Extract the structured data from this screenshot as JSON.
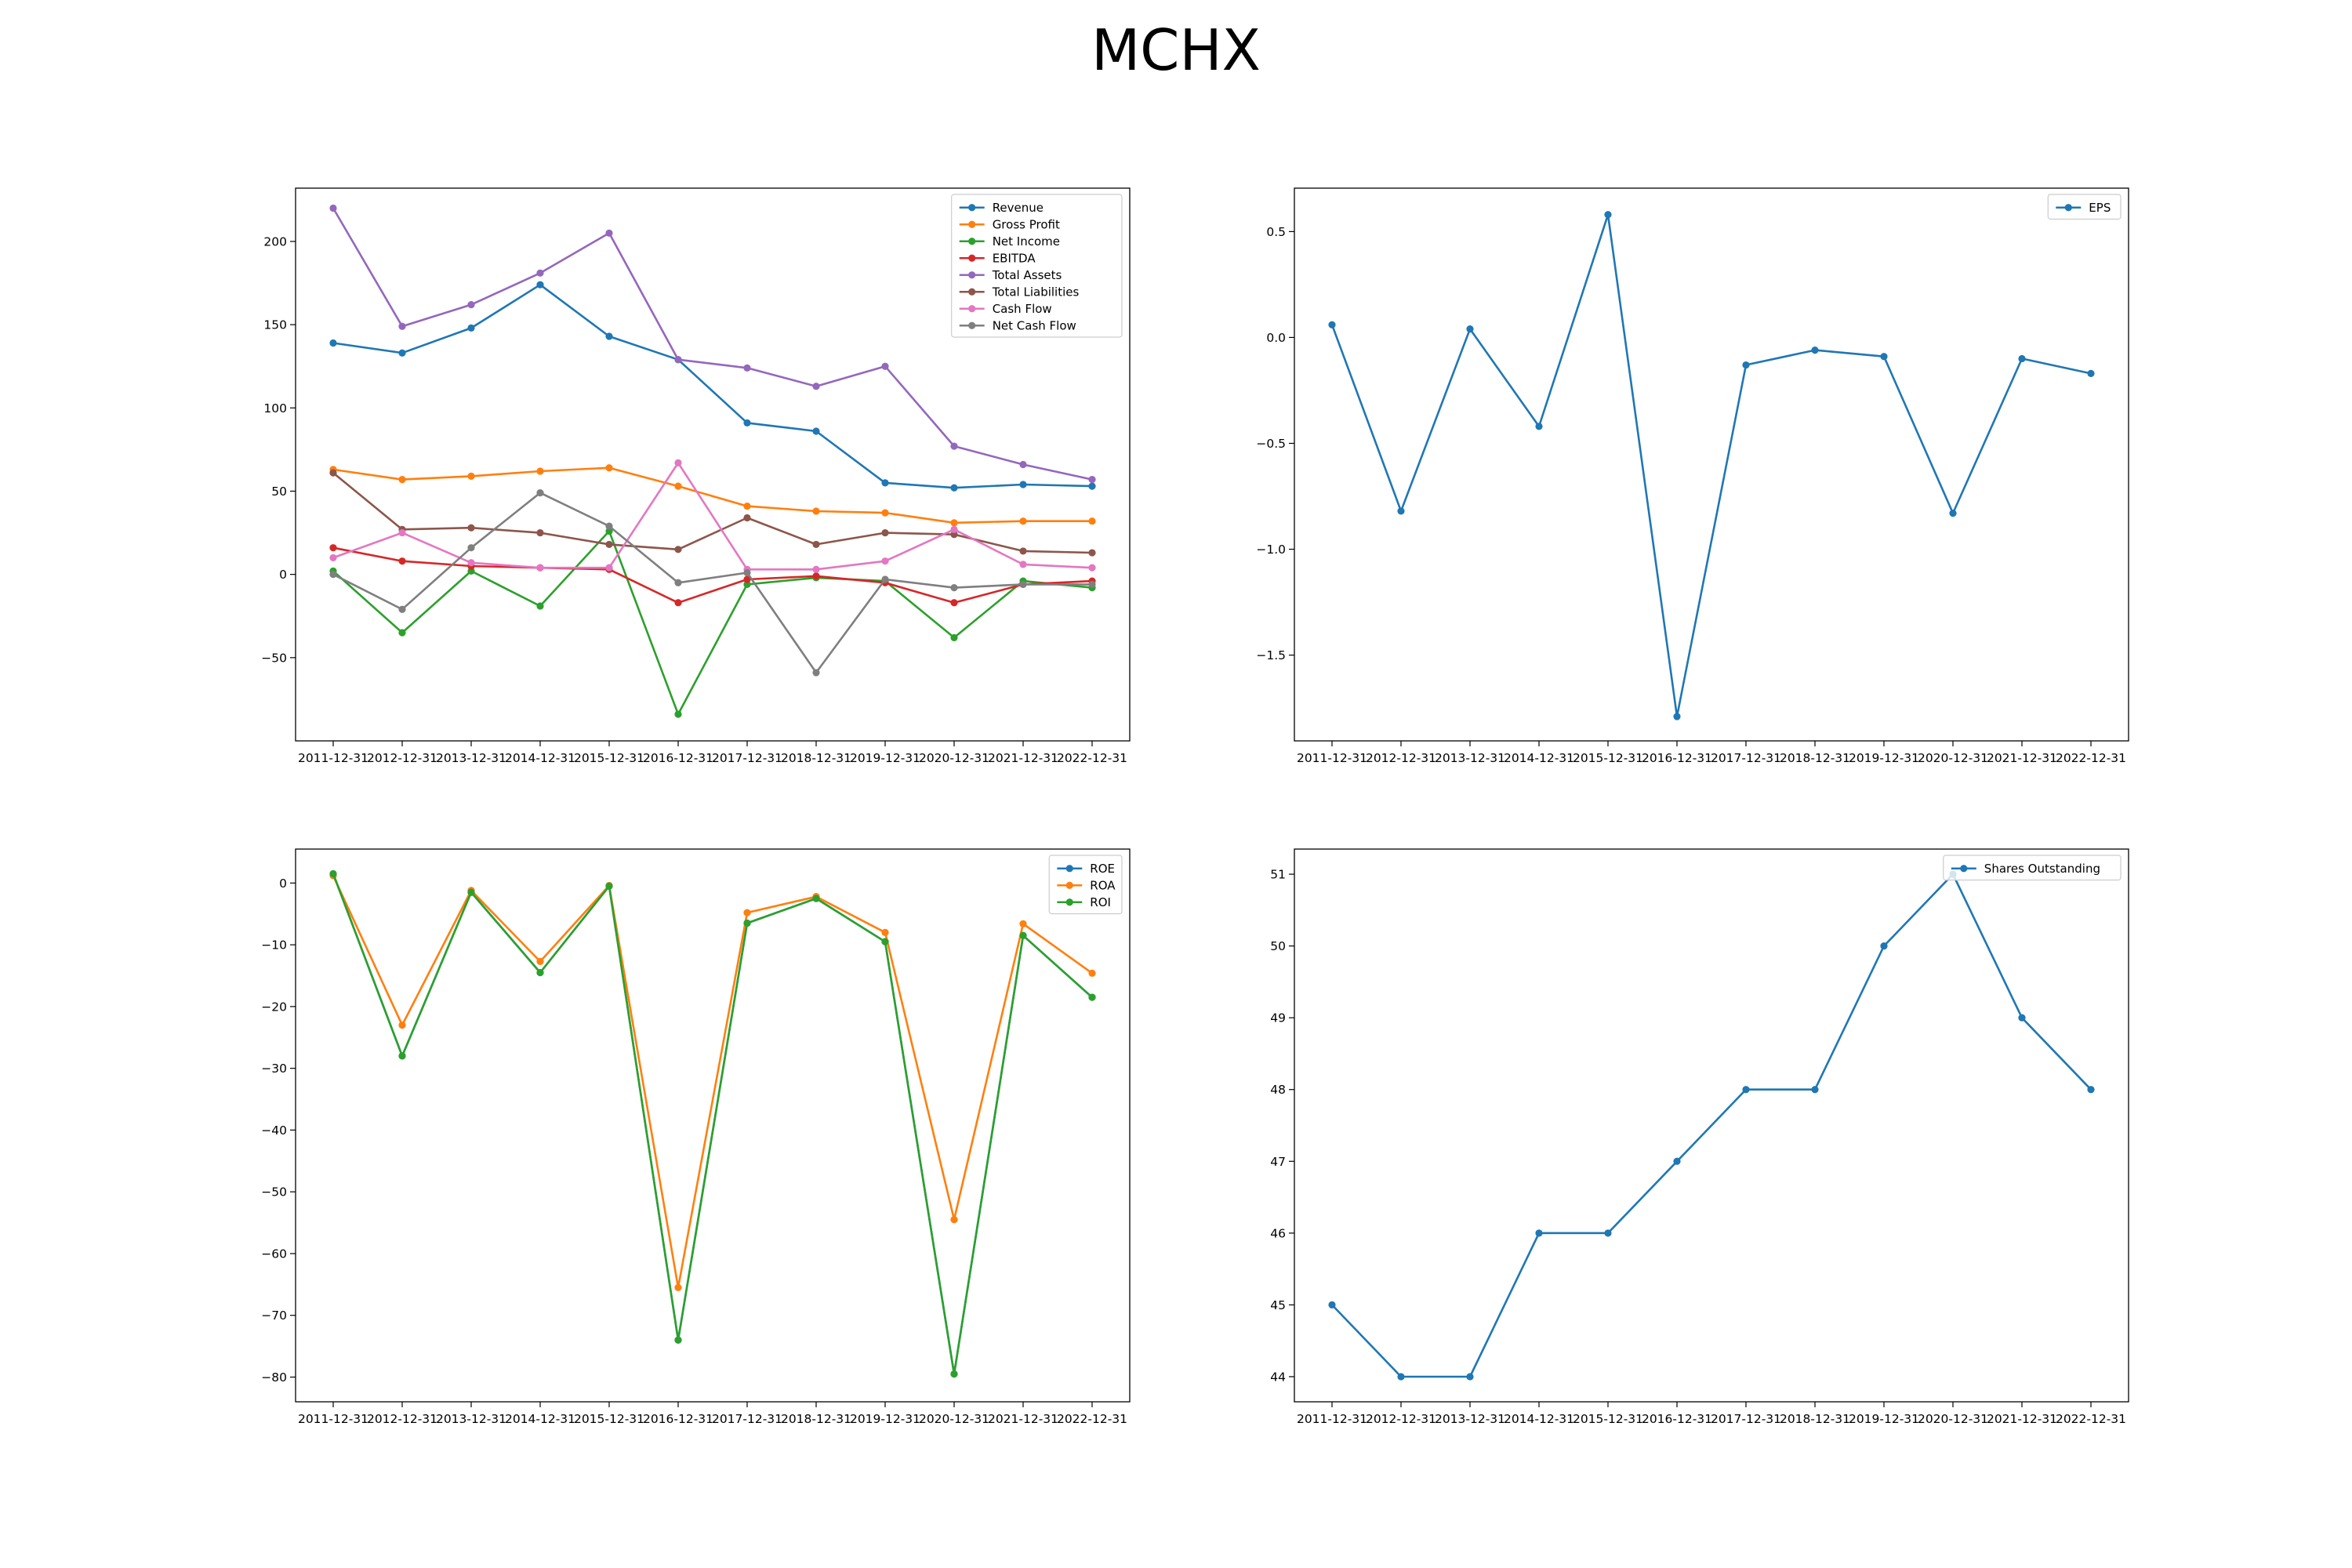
{
  "title": "MCHX",
  "colors": {
    "blue": "#1f77b4",
    "orange": "#ff7f0e",
    "green": "#2ca02c",
    "red": "#d62728",
    "purple": "#9467bd",
    "brown": "#8c564b",
    "pink": "#e377c2",
    "gray": "#7f7f7f"
  },
  "chart_data": [
    {
      "type": "line",
      "x": [
        "2011-12-31",
        "2012-12-31",
        "2013-12-31",
        "2014-12-31",
        "2015-12-31",
        "2016-12-31",
        "2017-12-31",
        "2018-12-31",
        "2019-12-31",
        "2020-12-31",
        "2021-12-31",
        "2022-12-31"
      ],
      "ylim": [
        -100,
        232
      ],
      "yticks": [
        -50,
        0,
        50,
        100,
        150,
        200
      ],
      "legend": "top-right",
      "series": [
        {
          "name": "Revenue",
          "color": "#1f77b4",
          "values": [
            139,
            133,
            148,
            174,
            143,
            129,
            91,
            86,
            55,
            52,
            54,
            53
          ]
        },
        {
          "name": "Gross Profit",
          "color": "#ff7f0e",
          "values": [
            63,
            57,
            59,
            62,
            64,
            53,
            41,
            38,
            37,
            31,
            32,
            32
          ]
        },
        {
          "name": "Net Income",
          "color": "#2ca02c",
          "values": [
            2,
            -35,
            2,
            -19,
            26,
            -84,
            -6,
            -2,
            -4,
            -38,
            -4,
            -8
          ]
        },
        {
          "name": "EBITDA",
          "color": "#d62728",
          "values": [
            16,
            8,
            5,
            4,
            3,
            -17,
            -3,
            -1,
            -5,
            -17,
            -6,
            -4
          ]
        },
        {
          "name": "Total Assets",
          "color": "#9467bd",
          "values": [
            220,
            149,
            162,
            181,
            205,
            129,
            124,
            113,
            125,
            77,
            66,
            57
          ]
        },
        {
          "name": "Total Liabilities",
          "color": "#8c564b",
          "values": [
            61,
            27,
            28,
            25,
            18,
            15,
            34,
            18,
            25,
            24,
            14,
            13
          ]
        },
        {
          "name": "Cash Flow",
          "color": "#e377c2",
          "values": [
            10,
            25,
            7,
            4,
            4,
            67,
            3,
            3,
            8,
            27,
            6,
            4
          ]
        },
        {
          "name": "Net Cash Flow",
          "color": "#7f7f7f",
          "values": [
            0,
            -21,
            16,
            49,
            29,
            -5,
            1,
            -59,
            -3,
            -8,
            -6,
            -6
          ]
        }
      ]
    },
    {
      "type": "line",
      "x": [
        "2011-12-31",
        "2012-12-31",
        "2013-12-31",
        "2014-12-31",
        "2015-12-31",
        "2016-12-31",
        "2017-12-31",
        "2018-12-31",
        "2019-12-31",
        "2020-12-31",
        "2021-12-31",
        "2022-12-31"
      ],
      "ylim": [
        -1.905,
        0.705
      ],
      "yticks": [
        -1.5,
        -1.0,
        -0.5,
        0.0,
        0.5
      ],
      "ytick_labels": [
        "−1.5",
        "−1.0",
        "−0.5",
        "0.0",
        "0.5"
      ],
      "legend": "top-right",
      "series": [
        {
          "name": "EPS",
          "color": "#1f77b4",
          "values": [
            0.06,
            -0.82,
            0.04,
            -0.42,
            0.58,
            -1.79,
            -0.13,
            -0.06,
            -0.09,
            -0.83,
            -0.1,
            -0.17
          ]
        }
      ]
    },
    {
      "type": "line",
      "x": [
        "2011-12-31",
        "2012-12-31",
        "2013-12-31",
        "2014-12-31",
        "2015-12-31",
        "2016-12-31",
        "2017-12-31",
        "2018-12-31",
        "2019-12-31",
        "2020-12-31",
        "2021-12-31",
        "2022-12-31"
      ],
      "ylim": [
        -84,
        5.5
      ],
      "yticks": [
        -80,
        -70,
        -60,
        -50,
        -40,
        -30,
        -20,
        -10,
        0
      ],
      "legend": "top-right",
      "series": [
        {
          "name": "ROE",
          "color": "#1f77b4",
          "values": [
            1.5,
            -28,
            -1.5,
            -14.5,
            -0.5,
            -74,
            -6.5,
            -2.5,
            -9.5,
            -79.5,
            -8.5,
            -18.5
          ]
        },
        {
          "name": "ROA",
          "color": "#ff7f0e",
          "values": [
            1.2,
            -23,
            -1.2,
            -12.7,
            -0.4,
            -65.5,
            -4.8,
            -2.2,
            -8,
            -54.5,
            -6.6,
            -14.6
          ]
        },
        {
          "name": "ROI",
          "color": "#2ca02c",
          "values": [
            1.5,
            -28,
            -1.5,
            -14.5,
            -0.5,
            -74,
            -6.5,
            -2.5,
            -9.5,
            -79.5,
            -8.5,
            -18.5
          ]
        }
      ]
    },
    {
      "type": "line",
      "x": [
        "2011-12-31",
        "2012-12-31",
        "2013-12-31",
        "2014-12-31",
        "2015-12-31",
        "2016-12-31",
        "2017-12-31",
        "2018-12-31",
        "2019-12-31",
        "2020-12-31",
        "2021-12-31",
        "2022-12-31"
      ],
      "ylim": [
        43.65,
        51.35
      ],
      "yticks": [
        44,
        45,
        46,
        47,
        48,
        49,
        50,
        51
      ],
      "legend": "top-right",
      "series": [
        {
          "name": "Shares Outstanding",
          "color": "#1f77b4",
          "values": [
            45,
            44,
            44,
            46,
            46,
            47,
            48,
            48,
            50,
            51,
            49,
            48
          ]
        }
      ]
    }
  ]
}
